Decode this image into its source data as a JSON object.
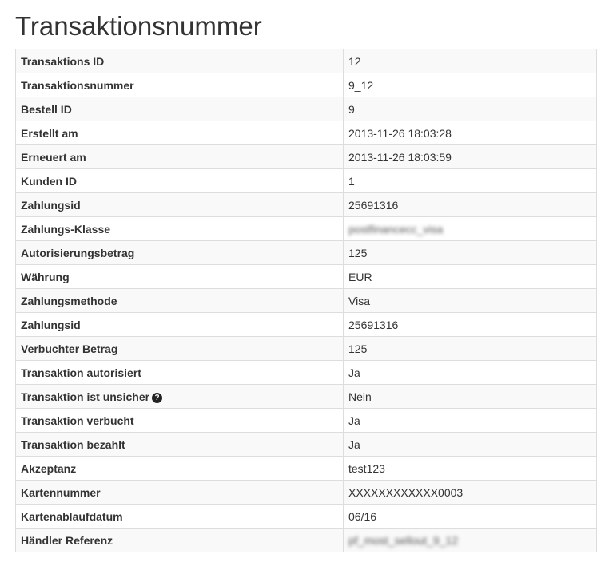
{
  "title": "Transaktionsnummer",
  "rows": [
    {
      "label": "Transaktions ID",
      "value": "12"
    },
    {
      "label": "Transaktionsnummer",
      "value": "9_12"
    },
    {
      "label": "Bestell ID",
      "value": "9"
    },
    {
      "label": "Erstellt am",
      "value": "2013-11-26 18:03:28"
    },
    {
      "label": "Erneuert am",
      "value": "2013-11-26 18:03:59"
    },
    {
      "label": "Kunden ID",
      "value": "1"
    },
    {
      "label": "Zahlungsid",
      "value": "25691316"
    },
    {
      "label": "Zahlungs-Klasse",
      "value": "postfinancecc_visa",
      "blurred": true
    },
    {
      "label": "Autorisierungsbetrag",
      "value": "125"
    },
    {
      "label": "Währung",
      "value": "EUR"
    },
    {
      "label": "Zahlungsmethode",
      "value": "Visa"
    },
    {
      "label": "Zahlungsid",
      "value": "25691316"
    },
    {
      "label": "Verbuchter Betrag",
      "value": "125"
    },
    {
      "label": "Transaktion autorisiert",
      "value": "Ja"
    },
    {
      "label": "Transaktion ist unsicher",
      "value": "Nein",
      "help_icon": "question-circle-icon"
    },
    {
      "label": "Transaktion verbucht",
      "value": "Ja"
    },
    {
      "label": "Transaktion bezahlt",
      "value": "Ja"
    },
    {
      "label": "Akzeptanz",
      "value": "test123"
    },
    {
      "label": "Kartennummer",
      "value": "XXXXXXXXXXXX0003"
    },
    {
      "label": "Kartenablaufdatum",
      "value": "06/16"
    },
    {
      "label": "Händler Referenz",
      "value": "pf_most_sellout_9_12",
      "blurred": true
    }
  ]
}
